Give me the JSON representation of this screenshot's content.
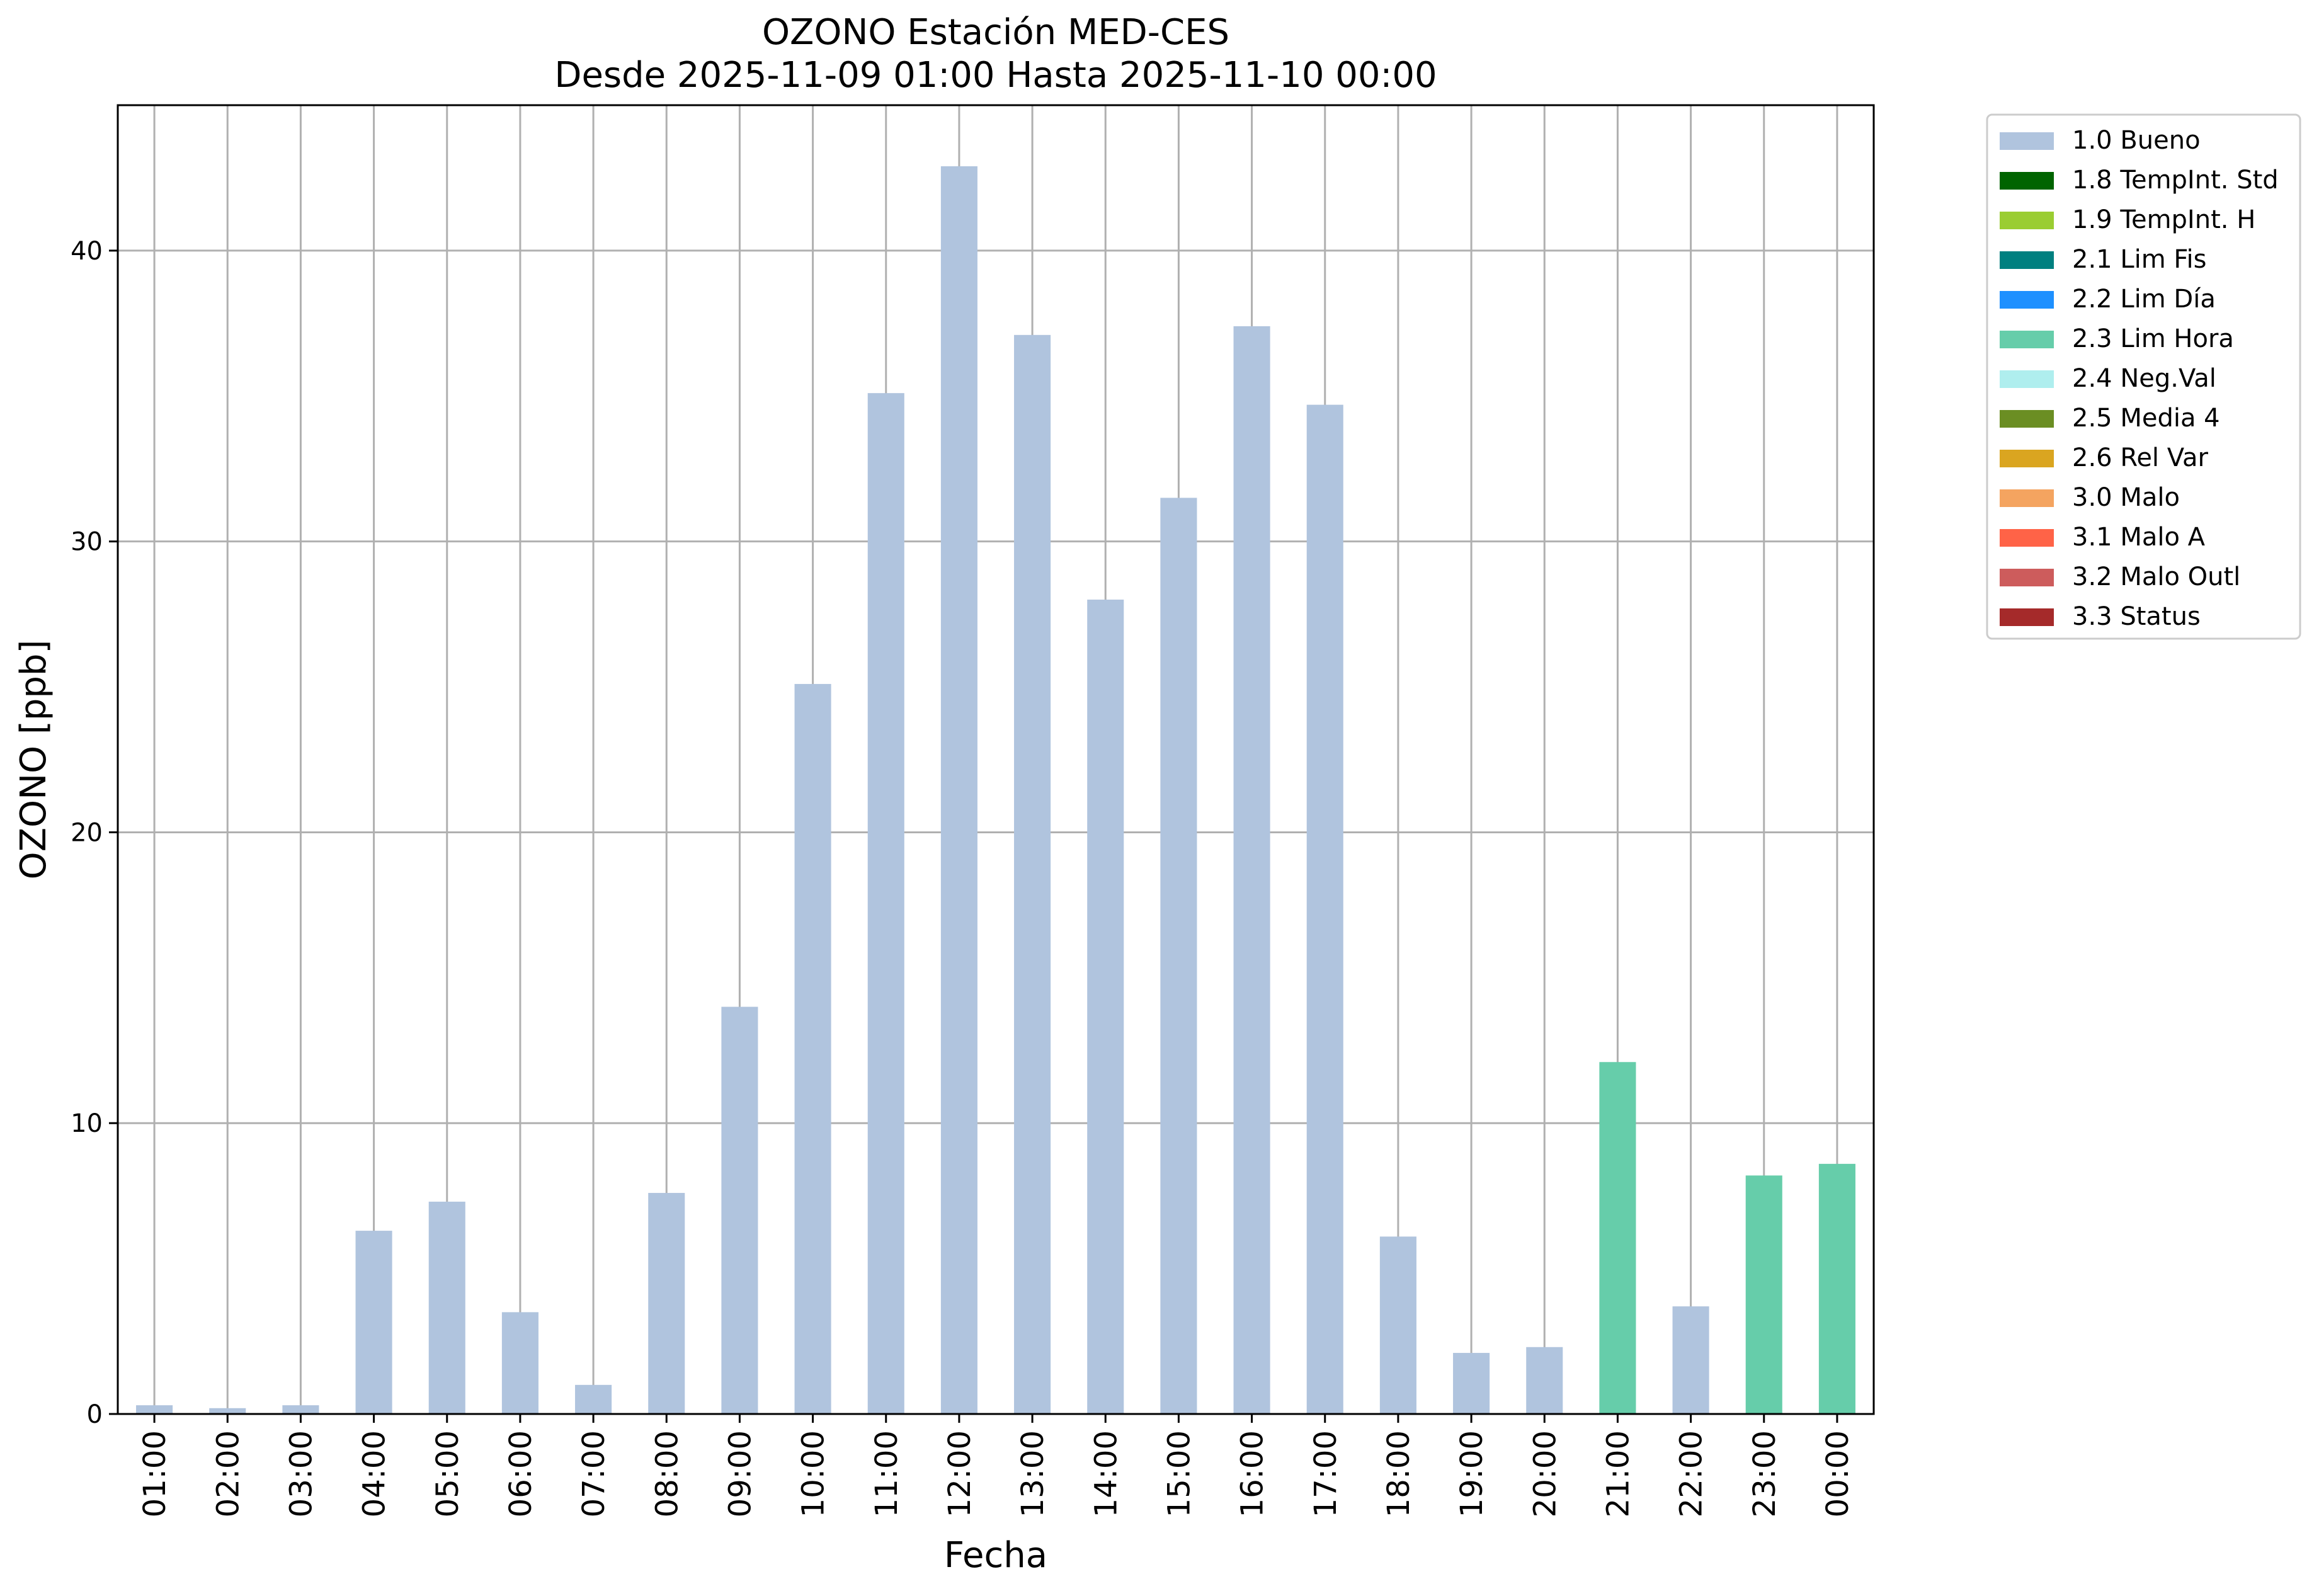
{
  "chart_data": {
    "type": "bar",
    "title": "OZONO Estación MED-CES",
    "subtitle": "Desde 2025-11-09 01:00 Hasta 2025-11-10 00:00",
    "xlabel": "Fecha",
    "ylabel": "OZONO [ppb]",
    "ylim": [
      0,
      45
    ],
    "yticks": [
      0,
      10,
      20,
      30,
      40
    ],
    "grid": true,
    "legend_position": "outside-top-right",
    "categories": [
      "01:00",
      "02:00",
      "03:00",
      "04:00",
      "05:00",
      "06:00",
      "07:00",
      "08:00",
      "09:00",
      "10:00",
      "11:00",
      "12:00",
      "13:00",
      "14:00",
      "15:00",
      "16:00",
      "17:00",
      "18:00",
      "19:00",
      "20:00",
      "21:00",
      "22:00",
      "23:00",
      "00:00"
    ],
    "values": [
      0.3,
      0.2,
      0.3,
      6.3,
      7.3,
      3.5,
      1.0,
      7.6,
      14.0,
      25.1,
      35.1,
      42.9,
      37.1,
      28.0,
      31.5,
      37.4,
      34.7,
      6.1,
      2.1,
      2.3,
      12.1,
      3.7,
      8.2,
      8.6
    ],
    "flags": [
      "1.0 Bueno",
      "1.0 Bueno",
      "1.0 Bueno",
      "1.0 Bueno",
      "1.0 Bueno",
      "1.0 Bueno",
      "1.0 Bueno",
      "1.0 Bueno",
      "1.0 Bueno",
      "1.0 Bueno",
      "1.0 Bueno",
      "1.0 Bueno",
      "1.0 Bueno",
      "1.0 Bueno",
      "1.0 Bueno",
      "1.0 Bueno",
      "1.0 Bueno",
      "1.0 Bueno",
      "1.0 Bueno",
      "1.0 Bueno",
      "2.3 Lim Hora",
      "1.0 Bueno",
      "2.3 Lim Hora",
      "2.3 Lim Hora"
    ],
    "legend": [
      {
        "name": "1.0 Bueno",
        "color": "#b0c4de"
      },
      {
        "name": "1.8 TempInt. Std",
        "color": "#006400"
      },
      {
        "name": "1.9 TempInt. H",
        "color": "#9acd32"
      },
      {
        "name": "2.1 Lim Fis",
        "color": "#008080"
      },
      {
        "name": "2.2 Lim Día",
        "color": "#1e90ff"
      },
      {
        "name": "2.3 Lim Hora",
        "color": "#66cdaa"
      },
      {
        "name": "2.4 Neg.Val",
        "color": "#afeeee"
      },
      {
        "name": "2.5 Media 4",
        "color": "#6b8e23"
      },
      {
        "name": "2.6 Rel Var",
        "color": "#daa520"
      },
      {
        "name": "3.0 Malo",
        "color": "#f4a460"
      },
      {
        "name": "3.1 Malo A",
        "color": "#ff6347"
      },
      {
        "name": "3.2 Malo Outl",
        "color": "#cd5c5c"
      },
      {
        "name": "3.3 Status",
        "color": "#a52a2a"
      }
    ]
  }
}
